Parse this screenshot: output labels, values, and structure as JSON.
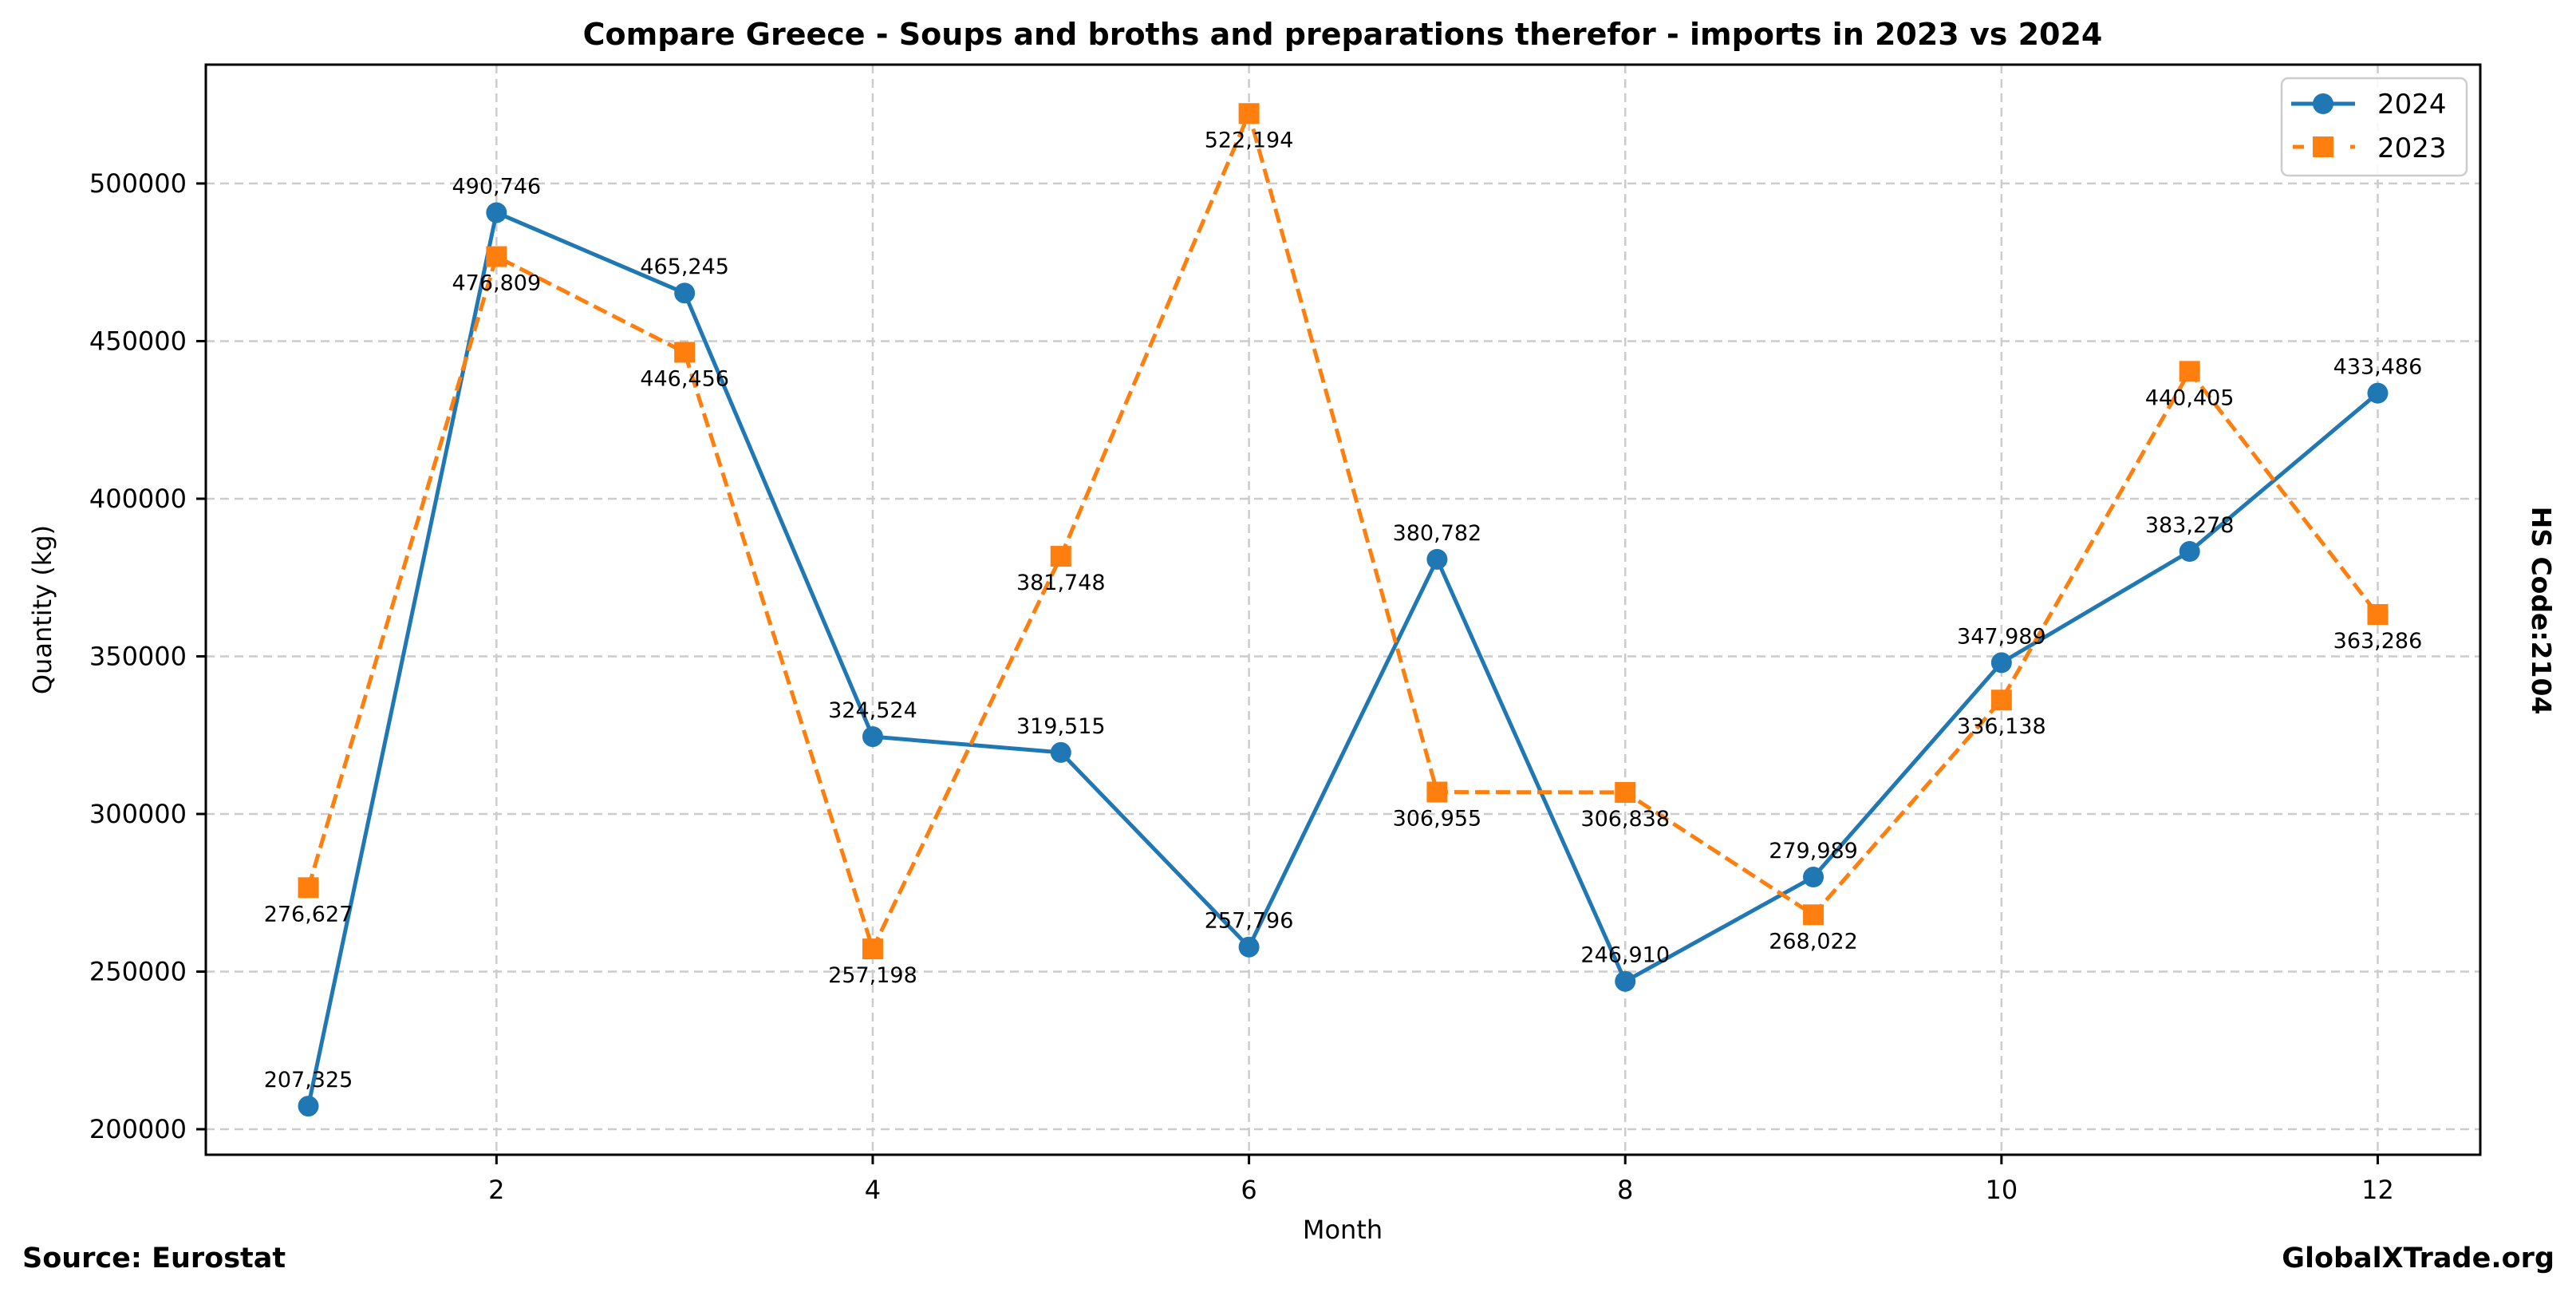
{
  "chart_data": {
    "type": "line",
    "title": "Compare Greece - Soups and broths and preparations therefor - imports in 2023 vs 2024",
    "xlabel": "Month",
    "ylabel": "Quantity (kg)",
    "x": [
      1,
      2,
      3,
      4,
      5,
      6,
      7,
      8,
      9,
      10,
      11,
      12
    ],
    "xlim": [
      0.455,
      12.545
    ],
    "ylim": [
      191900,
      537700
    ],
    "xticks": [
      2,
      4,
      6,
      8,
      10,
      12
    ],
    "xtick_labels": [
      "2",
      "4",
      "6",
      "8",
      "10",
      "12"
    ],
    "yticks": [
      200000,
      250000,
      300000,
      350000,
      400000,
      450000,
      500000
    ],
    "ytick_labels": [
      "200000",
      "250000",
      "300000",
      "350000",
      "400000",
      "450000",
      "500000"
    ],
    "grid": true,
    "legend_position": "top-right",
    "series": [
      {
        "name": "2024",
        "color": "#1f77b4",
        "line_style": "solid",
        "marker": "circle",
        "label_position": "above",
        "values": [
          207325,
          490746,
          465245,
          324524,
          319515,
          257796,
          380782,
          246910,
          279989,
          347989,
          383278,
          433486
        ],
        "labels": [
          "207,325",
          "490,746",
          "465,245",
          "324,524",
          "319,515",
          "257,796",
          "380,782",
          "246,910",
          "279,989",
          "347,989",
          "383,278",
          "433,486"
        ]
      },
      {
        "name": "2023",
        "color": "#ff7f0e",
        "line_style": "dashed",
        "marker": "square",
        "label_position": "below",
        "values": [
          276627,
          476809,
          446456,
          257198,
          381748,
          522194,
          306955,
          306838,
          268022,
          336138,
          440405,
          363286
        ],
        "labels": [
          "276,627",
          "476,809",
          "446,456",
          "257,198",
          "381,748",
          "522,194",
          "306,955",
          "306,838",
          "268,022",
          "336,138",
          "440,405",
          "363,286"
        ]
      }
    ]
  },
  "annotations": {
    "source": "Source: Eurostat",
    "brand": "GlobalXTrade.org",
    "hs_code": "HS Code:2104"
  },
  "colors": {
    "grid": "#cccccc",
    "axis": "#000000"
  }
}
